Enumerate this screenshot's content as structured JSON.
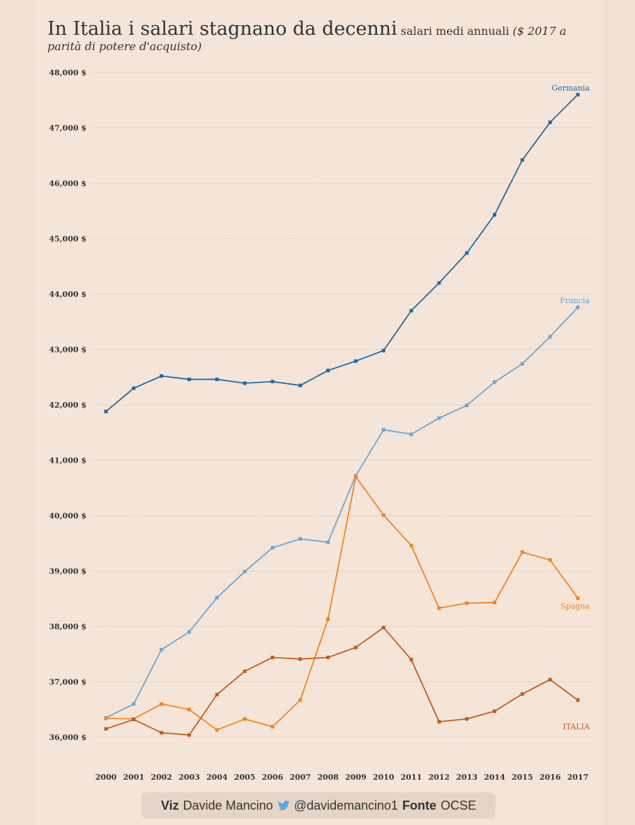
{
  "header": {
    "title": "In Italia i salari stagnano da decenni",
    "subtitle_prefix": "salari medi annuali",
    "subtitle_unit": "($ 2017 a parità di potere d'acquisto)"
  },
  "footer": {
    "viz_label": "Viz",
    "author": "Davide Mancino",
    "twitter_handle": "@davidemancino1",
    "source_label": "Fonte",
    "source": "OCSE"
  },
  "colors": {
    "Germania": "#1f6aa5",
    "Francia": "#6aa6d6",
    "Spagna": "#f58220",
    "ITALIA": "#c85a1a",
    "grid": "#d9c8b8",
    "twitter": "#5aa8e6"
  },
  "chart_data": {
    "type": "line",
    "x": [
      2000,
      2001,
      2002,
      2003,
      2004,
      2005,
      2006,
      2007,
      2008,
      2009,
      2010,
      2011,
      2012,
      2013,
      2014,
      2015,
      2016,
      2017
    ],
    "ylim": [
      36000,
      48000
    ],
    "yticks": [
      36000,
      37000,
      38000,
      39000,
      40000,
      41000,
      42000,
      43000,
      44000,
      45000,
      46000,
      47000,
      48000
    ],
    "ytick_labels": [
      "36,000 $",
      "37,000 $",
      "38,000 $",
      "39,000 $",
      "40,000 $",
      "41,000 $",
      "42,000 $",
      "43,000 $",
      "44,000 $",
      "45,000 $",
      "46,000 $",
      "47,000 $",
      "48,000 $"
    ],
    "xtick_labels": [
      "2000",
      "2001",
      "2002",
      "2003",
      "2004",
      "2005",
      "2006",
      "2007",
      "2008",
      "2009",
      "2010",
      "2011",
      "2012",
      "2013",
      "2014",
      "2015",
      "2016",
      "2017"
    ],
    "grid": true,
    "legend": "direct labels at line ends",
    "series": [
      {
        "name": "Germania",
        "values": [
          41880,
          42300,
          42520,
          42460,
          42460,
          42390,
          42420,
          42350,
          42620,
          42790,
          42980,
          43700,
          44200,
          44740,
          45430,
          46420,
          47100,
          47600
        ]
      },
      {
        "name": "Francia",
        "values": [
          36350,
          36600,
          37580,
          37900,
          38520,
          38990,
          39420,
          39580,
          39520,
          40720,
          41550,
          41470,
          41760,
          41990,
          42410,
          42740,
          43230,
          43760
        ]
      },
      {
        "name": "Spagna",
        "values": [
          36340,
          36330,
          36600,
          36500,
          36130,
          36330,
          36190,
          36670,
          38130,
          40700,
          40010,
          39460,
          38330,
          38420,
          38430,
          39340,
          39200,
          38510
        ]
      },
      {
        "name": "ITALIA",
        "values": [
          36150,
          36320,
          36080,
          36040,
          36770,
          37190,
          37440,
          37410,
          37440,
          37620,
          37980,
          37400,
          36280,
          36330,
          36470,
          36780,
          37040,
          36670
        ]
      }
    ]
  }
}
